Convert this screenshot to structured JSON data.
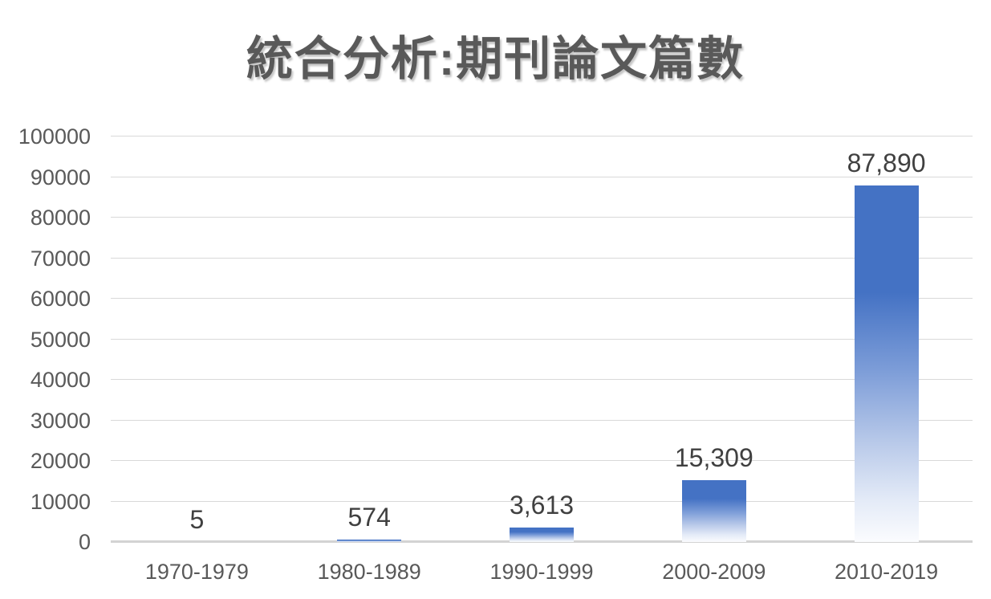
{
  "chart_data": {
    "type": "bar",
    "title": "統合分析:期刊論文篇數",
    "categories": [
      "1970-1979",
      "1980-1989",
      "1990-1999",
      "2000-2009",
      "2010-2019"
    ],
    "values": [
      5,
      574,
      3613,
      15309,
      87890
    ],
    "data_labels": [
      "5",
      "574",
      "3,613",
      "15,309",
      "87,890"
    ],
    "xlabel": "",
    "ylabel": "",
    "ylim": [
      0,
      100000
    ],
    "ytick_step": 10000,
    "yticks": [
      0,
      10000,
      20000,
      30000,
      40000,
      50000,
      60000,
      70000,
      80000,
      90000,
      100000
    ],
    "grid": true,
    "legend": false,
    "colors": {
      "bar_top": "#4472c4",
      "bar_bottom": "#ffffff",
      "gridline": "#d9d9d9",
      "axis_line": "#d3d3d3",
      "title_text": "#595959",
      "axis_text": "#595959",
      "data_label_text": "#404040",
      "background": "#ffffff"
    }
  }
}
